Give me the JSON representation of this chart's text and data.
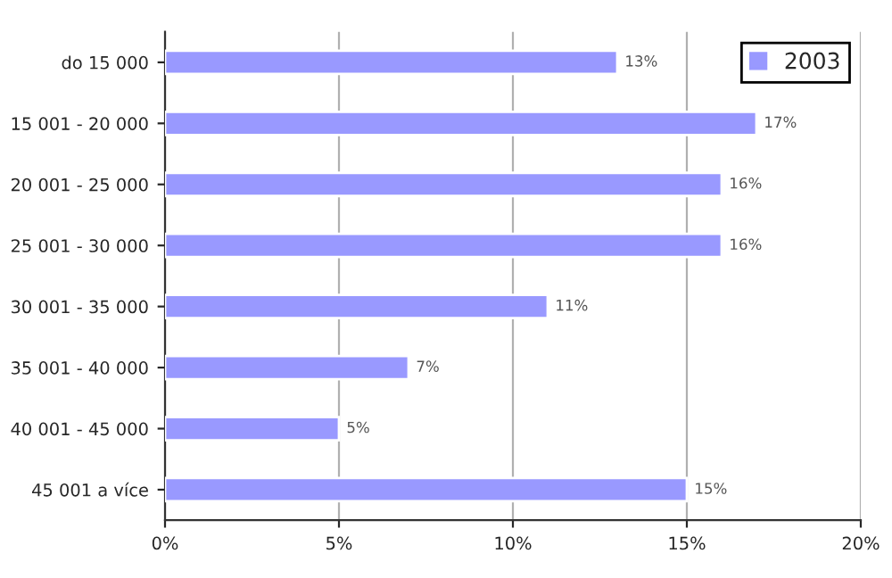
{
  "chart_data": {
    "type": "bar",
    "orientation": "horizontal",
    "categories": [
      "do 15 000",
      "15 001 - 20 000",
      "20 001 - 25 000",
      "25 001 - 30 000",
      "30 001 - 35 000",
      "35 001 - 40 000",
      "40 001 - 45 000",
      "45 001 a více"
    ],
    "series": [
      {
        "name": "2003",
        "color": "#9999ff",
        "values": [
          13,
          17,
          16,
          16,
          11,
          7,
          5,
          15
        ],
        "value_labels": [
          "13%",
          "17%",
          "16%",
          "16%",
          "11%",
          "7%",
          "5%",
          "15%"
        ]
      }
    ],
    "xlim": [
      0,
      20
    ],
    "xticks": [
      {
        "value": 0,
        "label": "0%"
      },
      {
        "value": 5,
        "label": "5%"
      },
      {
        "value": 10,
        "label": "10%"
      },
      {
        "value": 15,
        "label": "15%"
      },
      {
        "value": 20,
        "label": "20%"
      }
    ],
    "grid": "x",
    "legend": "top right"
  }
}
